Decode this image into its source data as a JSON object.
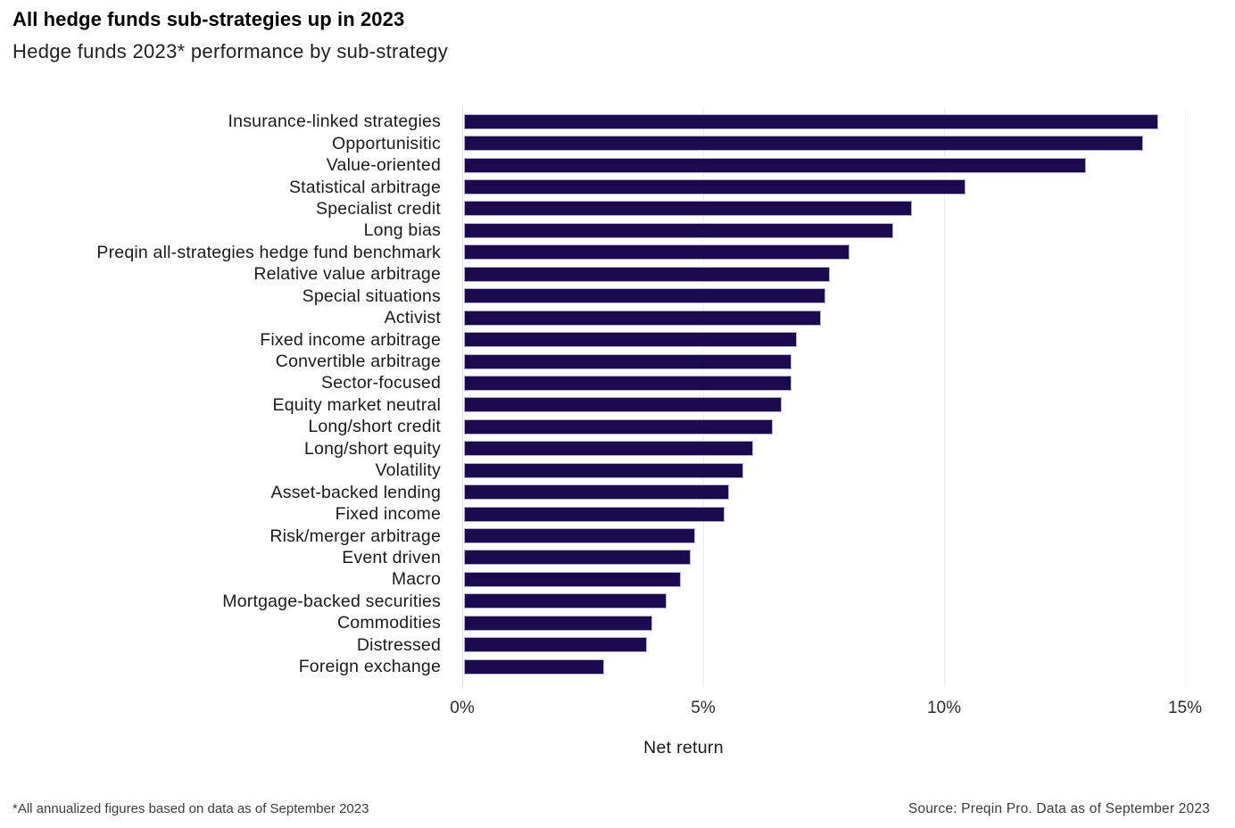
{
  "header": {
    "title": "All hedge funds sub-strategies up in 2023",
    "subtitle": "Hedge funds 2023* performance by sub-strategy"
  },
  "chart_data": {
    "type": "bar",
    "orientation": "horizontal",
    "title": "All hedge funds sub-strategies up in 2023",
    "subtitle": "Hedge funds 2023* performance by sub-strategy",
    "xlabel": "Net return",
    "ylabel": "",
    "xlim": [
      0,
      15.5
    ],
    "grid": "vertical-gridlines-on",
    "legend": "none",
    "bar_color": "#1b0a4e",
    "bar_border_color": "#b3abd1",
    "x_ticks": [
      {
        "value": 0,
        "label": "0%"
      },
      {
        "value": 5,
        "label": "5%"
      },
      {
        "value": 10,
        "label": "10%"
      },
      {
        "value": 15,
        "label": "15%"
      }
    ],
    "categories": [
      "Insurance-linked strategies",
      "Opportunisitic",
      "Value-oriented",
      "Statistical arbitrage",
      "Specialist credit",
      "Long bias",
      "Preqin all-strategies hedge fund benchmark",
      "Relative value arbitrage",
      "Special situations",
      "Activist",
      "Fixed income arbitrage",
      "Convertible arbitrage",
      "Sector-focused",
      "Equity market neutral",
      "Long/short credit",
      "Long/short equity",
      "Volatility",
      "Asset-backed lending",
      "Fixed income",
      "Risk/merger arbitrage",
      "Event driven",
      "Macro",
      "Mortgage-backed securities",
      "Commodities",
      "Distressed",
      "Foreign exchange"
    ],
    "values": [
      14.4,
      14.1,
      12.9,
      10.4,
      9.3,
      8.9,
      8.0,
      7.6,
      7.5,
      7.4,
      6.9,
      6.8,
      6.8,
      6.6,
      6.4,
      6.0,
      5.8,
      5.5,
      5.4,
      4.8,
      4.7,
      4.5,
      4.2,
      3.9,
      3.8,
      2.9
    ]
  },
  "footer": {
    "note": "*All annualized figures based on data as of September 2023",
    "source": "Source: Preqin Pro. Data as of September 2023"
  }
}
